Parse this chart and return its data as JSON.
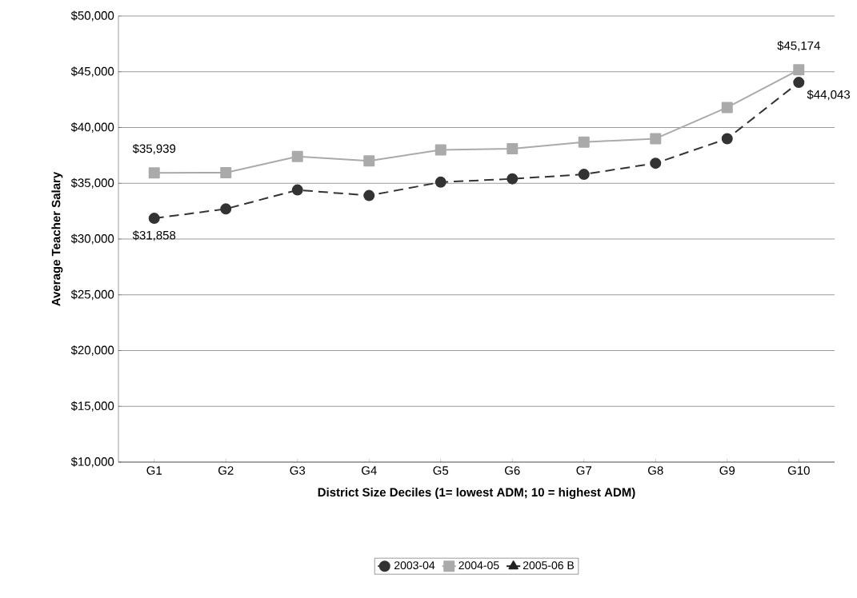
{
  "chart_data": {
    "type": "line",
    "xlabel": "District Size Deciles (1= lowest ADM; 10 = highest ADM)",
    "ylabel": "Average Teacher Salary",
    "categories": [
      "G1",
      "G2",
      "G3",
      "G4",
      "G5",
      "G6",
      "G7",
      "G8",
      "G9",
      "G10"
    ],
    "series": [
      {
        "name": "2003-04",
        "color": "#333333",
        "marker": "circle",
        "line_style": "dashed",
        "values": [
          31858,
          32700,
          34400,
          33900,
          35100,
          35400,
          35800,
          36800,
          39000,
          44043
        ],
        "value_labels": [
          "$31,858",
          null,
          null,
          null,
          null,
          null,
          null,
          null,
          null,
          "$44,043"
        ]
      },
      {
        "name": "2004-05",
        "color": "#aaaaaa",
        "marker": "square",
        "line_style": "solid",
        "values": [
          35939,
          35950,
          37400,
          37000,
          38000,
          38100,
          38700,
          39000,
          41800,
          45174
        ],
        "value_labels": [
          "$35,939",
          null,
          null,
          null,
          null,
          null,
          null,
          null,
          null,
          "$45,174"
        ]
      },
      {
        "name": "2005-06 B",
        "color": "#222222",
        "marker": "triangle",
        "line_style": "solid",
        "values": [
          null,
          null,
          null,
          null,
          null,
          null,
          null,
          null,
          null,
          null
        ]
      }
    ],
    "ylim": [
      10000,
      50000
    ],
    "yticks": [
      {
        "value": 10000,
        "label": "$10,000"
      },
      {
        "value": 15000,
        "label": "$15,000"
      },
      {
        "value": 20000,
        "label": "$20,000"
      },
      {
        "value": 25000,
        "label": "$25,000"
      },
      {
        "value": 30000,
        "label": "$30,000"
      },
      {
        "value": 35000,
        "label": "$35,000"
      },
      {
        "value": 40000,
        "label": "$40,000"
      },
      {
        "value": 45000,
        "label": "$45,000"
      },
      {
        "value": 50000,
        "label": "$50,000"
      }
    ],
    "grid": "y",
    "legend": "bottom"
  }
}
